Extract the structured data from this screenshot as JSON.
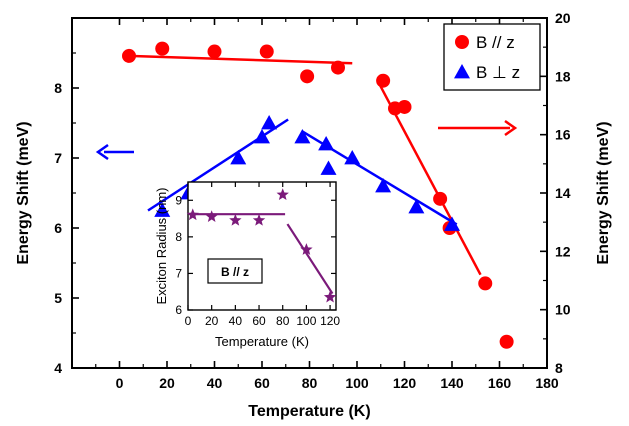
{
  "chart_data": [
    {
      "type": "scatter",
      "xlabel": "Temperature (K)",
      "ylabel": "Energy Shift (meV)",
      "y2label": "Energy Shift (meV)",
      "xlim": [
        -20,
        180
      ],
      "ylim": [
        4,
        9
      ],
      "y2lim": [
        8,
        20
      ],
      "xticks": [
        "0",
        "20",
        "40",
        "60",
        "80",
        "100",
        "120",
        "140",
        "160",
        "180"
      ],
      "yticks": [
        "4",
        "5",
        "6",
        "7",
        "8"
      ],
      "y2ticks": [
        "8",
        "10",
        "12",
        "14",
        "16",
        "18",
        "20"
      ],
      "series": [
        {
          "name": "B // z",
          "marker": "circle",
          "color": "#ff0000",
          "axis": "right",
          "x": [
            4,
            18,
            40,
            62,
            79,
            92,
            111,
            116,
            120,
            135,
            139,
            154,
            163
          ],
          "y": [
            18.7,
            18.95,
            18.85,
            18.85,
            18.0,
            18.3,
            17.85,
            16.9,
            16.95,
            13.8,
            12.8,
            10.9,
            8.9
          ]
        },
        {
          "name": "B ⊥ z",
          "marker": "triangle",
          "color": "#0000ff",
          "axis": "left",
          "x": [
            18,
            29,
            50,
            60,
            63,
            77,
            87,
            88,
            98,
            111,
            125,
            140
          ],
          "y": [
            6.25,
            6.5,
            7.0,
            7.3,
            7.5,
            7.3,
            7.2,
            6.85,
            7.0,
            6.6,
            6.3,
            6.05
          ]
        }
      ],
      "fit_lines": [
        {
          "color": "#ff0000",
          "axis": "right",
          "x": [
            4,
            98
          ],
          "y": [
            18.7,
            18.45
          ]
        },
        {
          "color": "#ff0000",
          "axis": "right",
          "x": [
            109,
            152
          ],
          "y": [
            17.8,
            11.2
          ]
        },
        {
          "color": "#0000ff",
          "axis": "left",
          "x": [
            12,
            71
          ],
          "y": [
            6.25,
            7.55
          ]
        },
        {
          "color": "#0000ff",
          "axis": "left",
          "x": [
            77,
            142
          ],
          "y": [
            7.38,
            6.05
          ]
        }
      ],
      "arrows": [
        {
          "color": "#0000ff",
          "direction": "left"
        },
        {
          "color": "#ff0000",
          "direction": "right"
        }
      ],
      "legend": {
        "placement": "top-right"
      }
    },
    {
      "type": "scatter",
      "inset": true,
      "xlabel": "Temperature (K)",
      "ylabel": "Exciton Radius (nm)",
      "annotation": "B // z",
      "xlim": [
        0,
        125
      ],
      "ylim": [
        6,
        9.5
      ],
      "xticks": [
        "0",
        "20",
        "40",
        "60",
        "80",
        "100",
        "120"
      ],
      "yticks": [
        "6",
        "7",
        "8",
        "9"
      ],
      "series": [
        {
          "marker": "star",
          "color": "#7b1a7a",
          "x": [
            4,
            20,
            40,
            60,
            80,
            100,
            120
          ],
          "y": [
            8.6,
            8.55,
            8.45,
            8.45,
            9.15,
            7.65,
            6.35
          ]
        }
      ],
      "fit_lines": [
        {
          "color": "#7b1a7a",
          "x": [
            3,
            82
          ],
          "y": [
            8.62,
            8.62
          ]
        },
        {
          "color": "#7b1a7a",
          "x": [
            84,
            122
          ],
          "y": [
            8.35,
            6.45
          ]
        }
      ]
    }
  ]
}
